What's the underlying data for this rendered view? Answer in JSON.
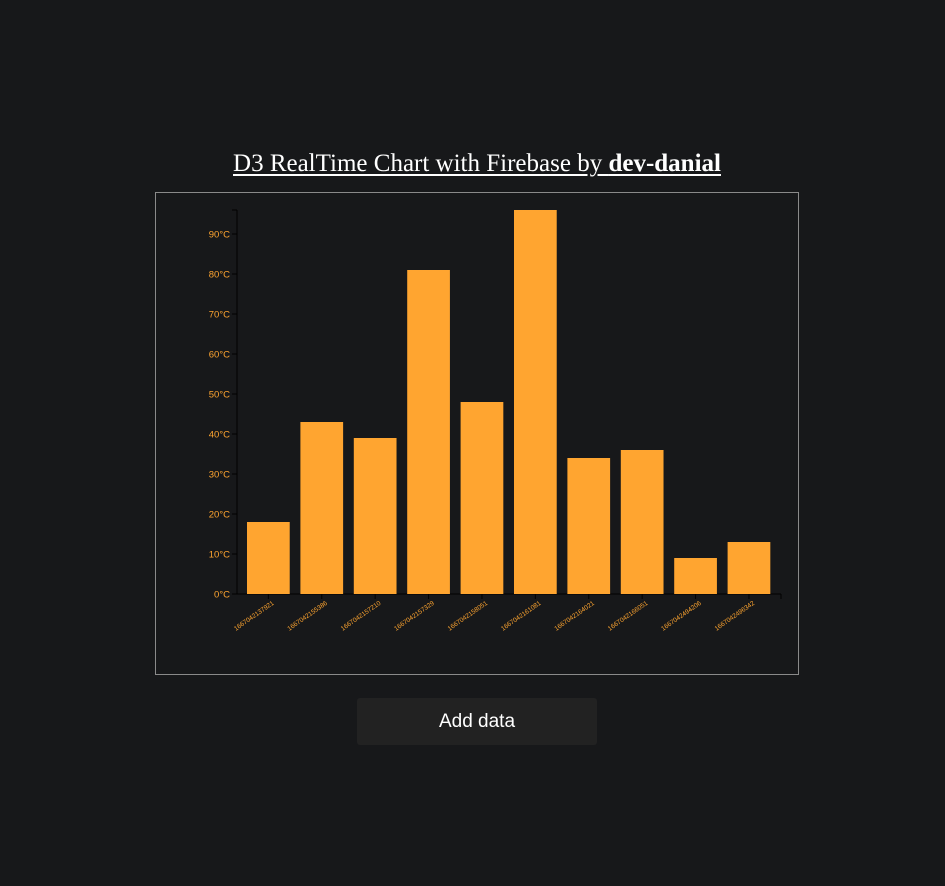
{
  "page": {
    "title_prefix": "D3 RealTime Chart with Firebase by ",
    "title_author": "dev-danial",
    "add_button_label": "Add data"
  },
  "colors": {
    "background": "#17181a",
    "bar": "#ffa530",
    "axis_text": "#ffa530",
    "frame_border": "#8a8a8a",
    "button_bg": "#222222"
  },
  "chart_data": {
    "type": "bar",
    "categories": [
      "1667042137921",
      "1667042155386",
      "1667042157210",
      "1667042157329",
      "1667042158051",
      "1667042161081",
      "1667042164021",
      "1667042166051",
      "1667042494206",
      "1667042496342"
    ],
    "values": [
      18,
      43,
      39,
      81,
      48,
      96,
      34,
      36,
      9,
      13
    ],
    "y_ticks": [
      0,
      10,
      20,
      30,
      40,
      50,
      60,
      70,
      80,
      90
    ],
    "y_tick_suffix": "°C",
    "ylim": [
      0,
      96
    ],
    "title": "",
    "xlabel": "",
    "ylabel": "",
    "grid": false,
    "legend": "none"
  }
}
